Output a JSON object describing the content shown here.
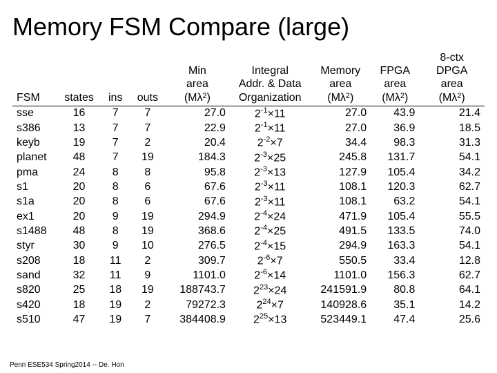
{
  "title": "Memory FSM Compare (large)",
  "footer": "Penn ESE534 Spring2014 -- De. Hon",
  "columns": [
    "FSM",
    "states",
    "ins",
    "outs",
    "Min area (Mλ²)",
    "Integral Addr. & Data Organization",
    "Memory area (Mλ²)",
    "FPGA area (Mλ²)",
    "8-ctx DPGA area (Mλ²)"
  ],
  "rows": [
    {
      "fsm": "sse",
      "states": "16",
      "ins": "7",
      "outs": "7",
      "min": "27.0",
      "org_exp": "-1",
      "org_w": "11",
      "mem": "27.0",
      "fpga": "43.9",
      "dpga": "21.4"
    },
    {
      "fsm": "s386",
      "states": "13",
      "ins": "7",
      "outs": "7",
      "min": "22.9",
      "org_exp": "-1",
      "org_w": "11",
      "mem": "27.0",
      "fpga": "36.9",
      "dpga": "18.5"
    },
    {
      "fsm": "keyb",
      "states": "19",
      "ins": "7",
      "outs": "2",
      "min": "20.4",
      "org_exp": "-2",
      "org_w": "7",
      "mem": "34.4",
      "fpga": "98.3",
      "dpga": "31.3"
    },
    {
      "fsm": "planet",
      "states": "48",
      "ins": "7",
      "outs": "19",
      "min": "184.3",
      "org_exp": "-3",
      "org_w": "25",
      "mem": "245.8",
      "fpga": "131.7",
      "dpga": "54.1"
    },
    {
      "fsm": "pma",
      "states": "24",
      "ins": "8",
      "outs": "8",
      "min": "95.8",
      "org_exp": "-3",
      "org_w": "13",
      "mem": "127.9",
      "fpga": "105.4",
      "dpga": "34.2"
    },
    {
      "fsm": "s1",
      "states": "20",
      "ins": "8",
      "outs": "6",
      "min": "67.6",
      "org_exp": "-3",
      "org_w": "11",
      "mem": "108.1",
      "fpga": "120.3",
      "dpga": "62.7"
    },
    {
      "fsm": "s1a",
      "states": "20",
      "ins": "8",
      "outs": "6",
      "min": "67.6",
      "org_exp": "-3",
      "org_w": "11",
      "mem": "108.1",
      "fpga": "63.2",
      "dpga": "54.1"
    },
    {
      "fsm": "ex1",
      "states": "20",
      "ins": "9",
      "outs": "19",
      "min": "294.9",
      "org_exp": "-4",
      "org_w": "24",
      "mem": "471.9",
      "fpga": "105.4",
      "dpga": "55.5"
    },
    {
      "fsm": "s1488",
      "states": "48",
      "ins": "8",
      "outs": "19",
      "min": "368.6",
      "org_exp": "-4",
      "org_w": "25",
      "mem": "491.5",
      "fpga": "133.5",
      "dpga": "74.0"
    },
    {
      "fsm": "styr",
      "states": "30",
      "ins": "9",
      "outs": "10",
      "min": "276.5",
      "org_exp": "-4",
      "org_w": "15",
      "mem": "294.9",
      "fpga": "163.3",
      "dpga": "54.1"
    },
    {
      "fsm": "s208",
      "states": "18",
      "ins": "11",
      "outs": "2",
      "min": "309.7",
      "org_exp": "-6",
      "org_w": "7",
      "mem": "550.5",
      "fpga": "33.4",
      "dpga": "12.8"
    },
    {
      "fsm": "sand",
      "states": "32",
      "ins": "11",
      "outs": "9",
      "min": "1101.0",
      "org_exp": "-6",
      "org_w": "14",
      "mem": "1101.0",
      "fpga": "156.3",
      "dpga": "62.7"
    },
    {
      "fsm": "s820",
      "states": "25",
      "ins": "18",
      "outs": "19",
      "min": "188743.7",
      "org_exp": "23",
      "org_w": "24",
      "mem": "241591.9",
      "fpga": "80.8",
      "dpga": "64.1"
    },
    {
      "fsm": "s420",
      "states": "18",
      "ins": "19",
      "outs": "2",
      "min": "79272.3",
      "org_exp": "24",
      "org_w": "7",
      "mem": "140928.6",
      "fpga": "35.1",
      "dpga": "14.2"
    },
    {
      "fsm": "s510",
      "states": "47",
      "ins": "19",
      "outs": "7",
      "min": "384408.9",
      "org_exp": "25",
      "org_w": "13",
      "mem": "523449.1",
      "fpga": "47.4",
      "dpga": "25.6"
    }
  ]
}
